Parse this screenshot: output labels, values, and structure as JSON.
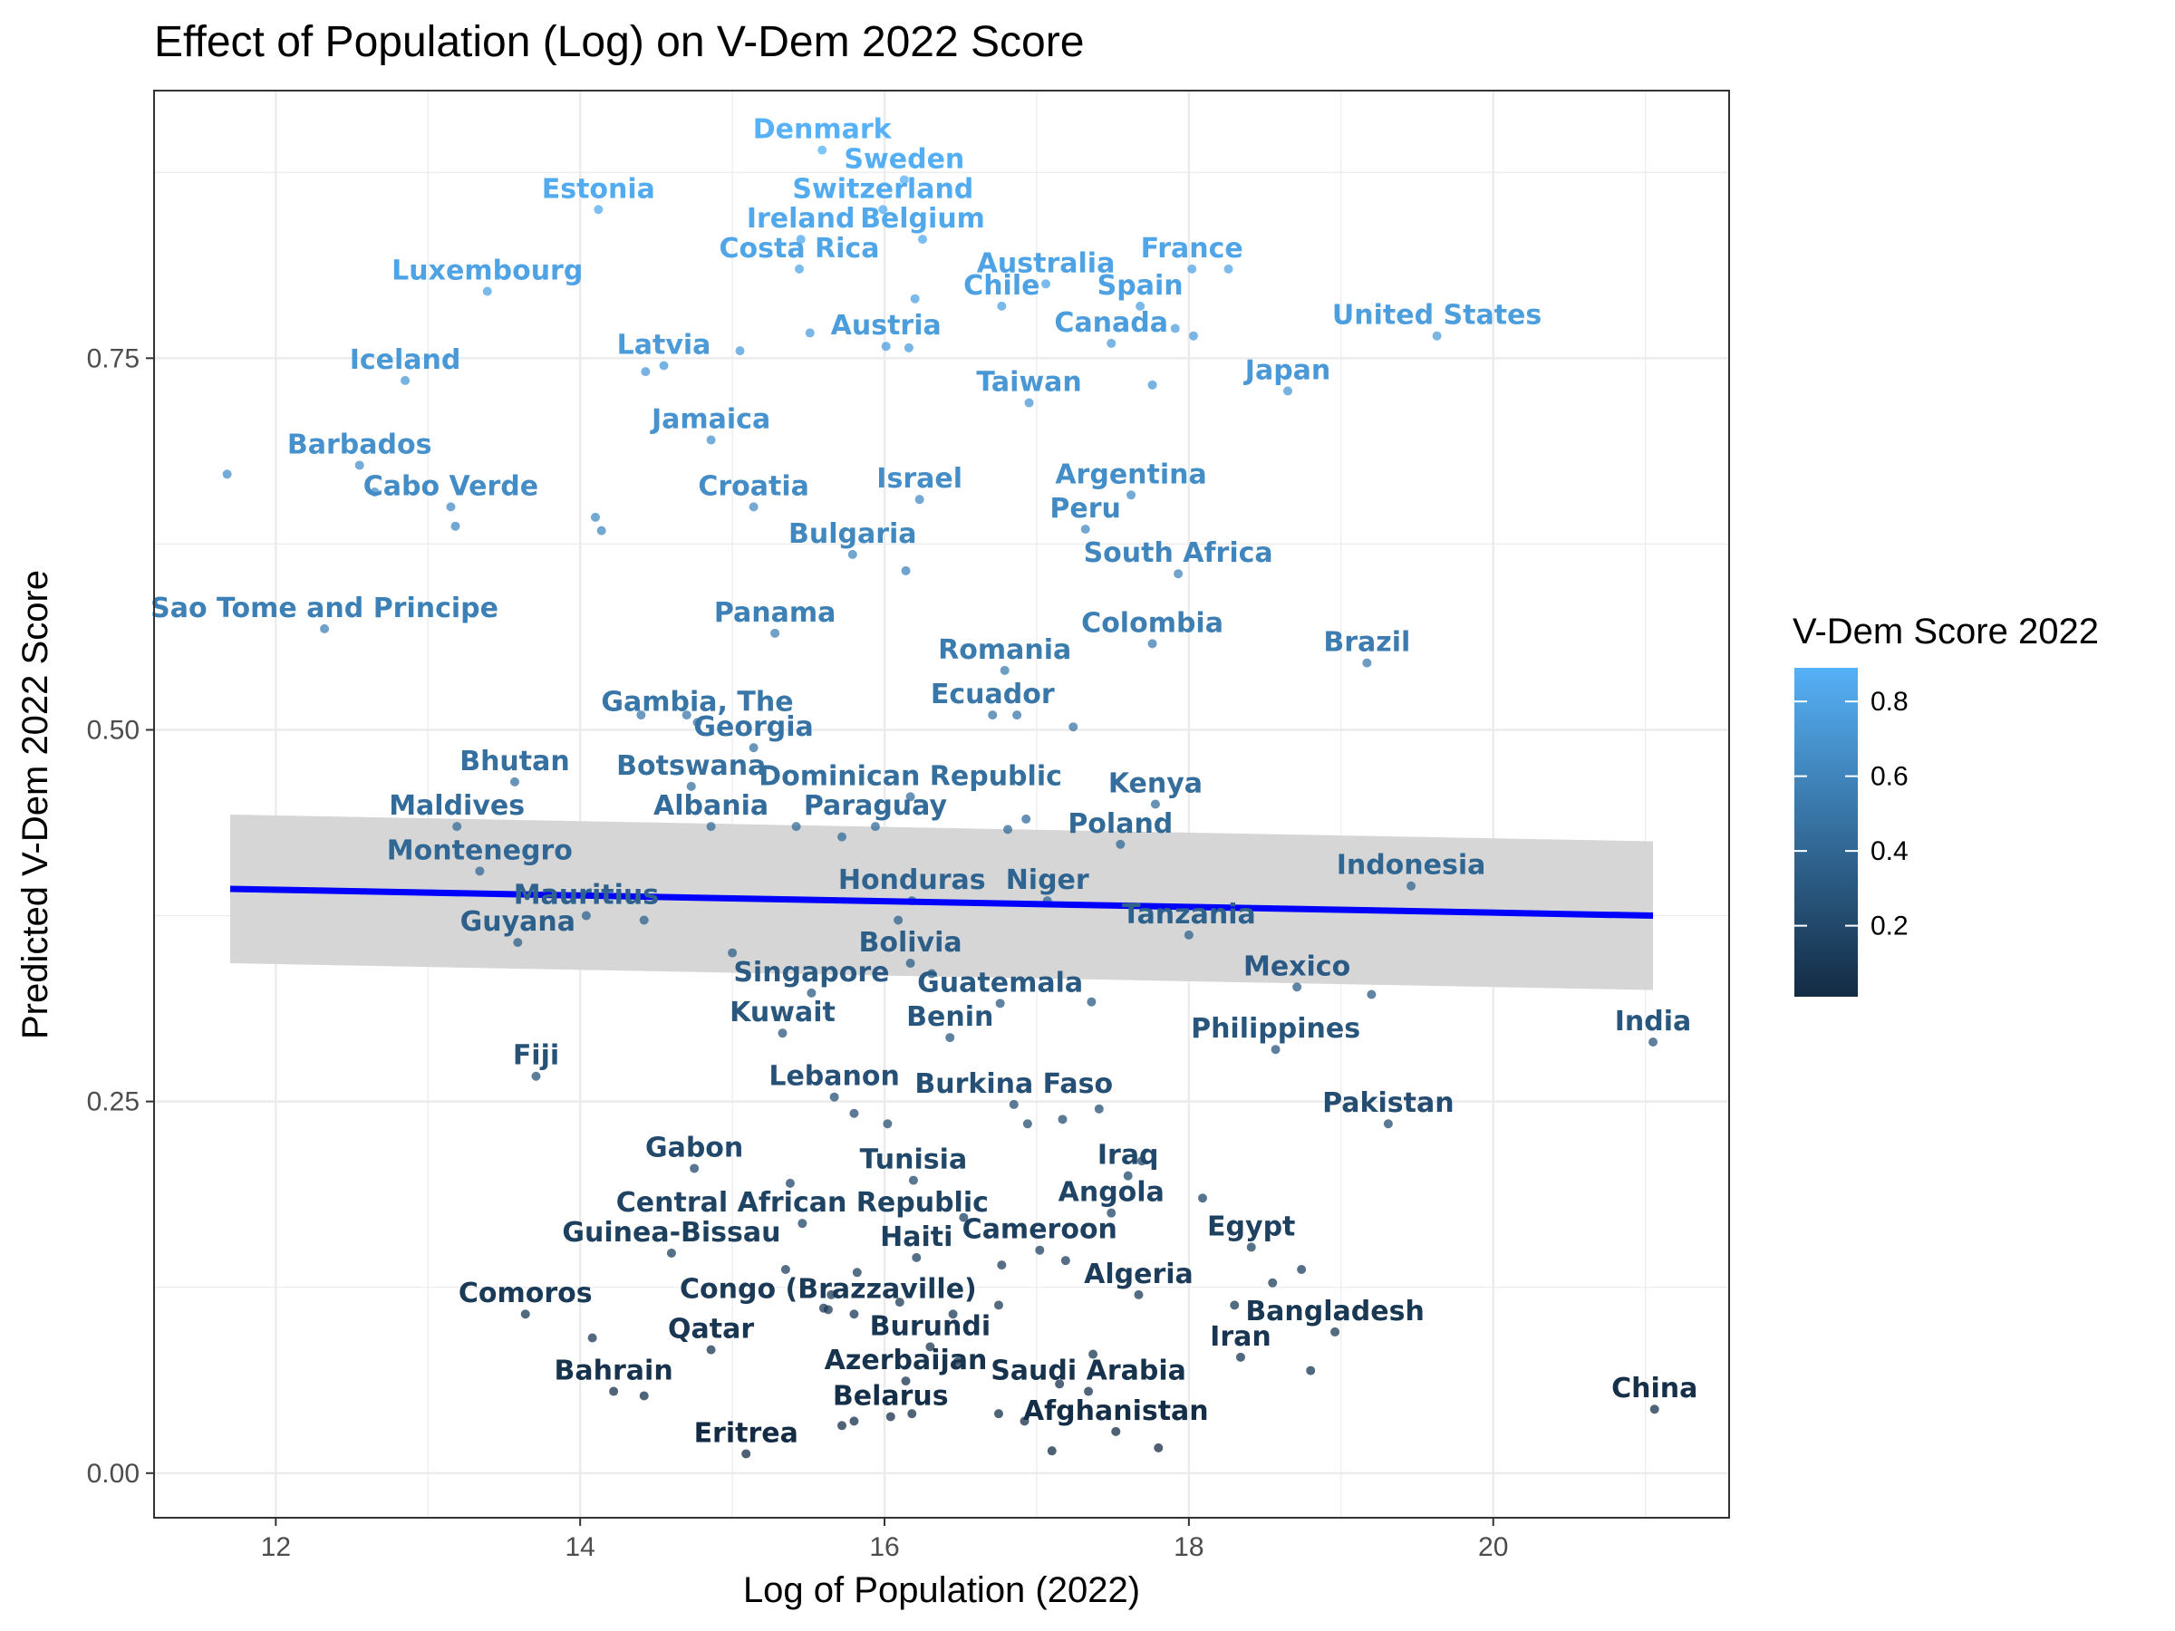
{
  "chart_data": {
    "type": "scatter",
    "title": "Effect of Population (Log) on V-Dem 2022 Score",
    "xlabel": "Log of Population (2022)",
    "ylabel": "Predicted V-Dem 2022 Score",
    "xlim": [
      11.2,
      21.55
    ],
    "ylim": [
      -0.03,
      0.93
    ],
    "x_ticks": [
      12,
      14,
      16,
      18,
      20
    ],
    "y_ticks": [
      0.0,
      0.25,
      0.5,
      0.75
    ],
    "x_tick_labels": [
      "12",
      "14",
      "16",
      "18",
      "20"
    ],
    "y_tick_labels": [
      "0.00",
      "0.25",
      "0.50",
      "0.75"
    ],
    "grid": true,
    "legend": {
      "title": "V-Dem Score 2022",
      "placement": "right",
      "type": "colorbar",
      "min": 0.01,
      "max": 0.89,
      "ticks": [
        0.2,
        0.4,
        0.6,
        0.8
      ],
      "tick_labels": [
        "0.2",
        "0.4",
        "0.6",
        "0.8"
      ],
      "color_low": "#132b43",
      "color_high": "#56b1f7"
    },
    "trend": {
      "method": "linear",
      "line_color": "#0000ff",
      "band_color": "#d4d4d4",
      "x": [
        11.7,
        21.05
      ],
      "y": [
        0.393,
        0.375
      ],
      "lower": [
        0.343,
        0.325
      ],
      "upper": [
        0.443,
        0.425
      ]
    },
    "labeled_points": [
      {
        "label": "Denmark",
        "x": 15.59,
        "y": 0.89
      },
      {
        "label": "Sweden",
        "x": 16.13,
        "y": 0.87
      },
      {
        "label": "Switzerland",
        "x": 15.99,
        "y": 0.85
      },
      {
        "label": "Estonia",
        "x": 14.12,
        "y": 0.85
      },
      {
        "label": "Ireland",
        "x": 15.45,
        "y": 0.83
      },
      {
        "label": "Belgium",
        "x": 16.25,
        "y": 0.83
      },
      {
        "label": "Costa Rica",
        "x": 15.44,
        "y": 0.81
      },
      {
        "label": "Luxembourg",
        "x": 13.39,
        "y": 0.795
      },
      {
        "label": "Australia",
        "x": 17.06,
        "y": 0.8
      },
      {
        "label": "France",
        "x": 18.02,
        "y": 0.81
      },
      {
        "label": "Chile",
        "x": 16.77,
        "y": 0.785
      },
      {
        "label": "Spain",
        "x": 17.68,
        "y": 0.785
      },
      {
        "label": "United States",
        "x": 19.63,
        "y": 0.765
      },
      {
        "label": "Canada",
        "x": 17.49,
        "y": 0.76
      },
      {
        "label": "Austria",
        "x": 16.01,
        "y": 0.758
      },
      {
        "label": "Latvia",
        "x": 14.55,
        "y": 0.745
      },
      {
        "label": "Iceland",
        "x": 12.85,
        "y": 0.735
      },
      {
        "label": "Taiwan",
        "x": 16.95,
        "y": 0.72
      },
      {
        "label": "Japan",
        "x": 18.65,
        "y": 0.728
      },
      {
        "label": "Jamaica",
        "x": 14.86,
        "y": 0.695
      },
      {
        "label": "Barbados",
        "x": 12.55,
        "y": 0.678
      },
      {
        "label": "Cabo Verde",
        "x": 13.15,
        "y": 0.65
      },
      {
        "label": "Croatia",
        "x": 15.14,
        "y": 0.65
      },
      {
        "label": "Israel",
        "x": 16.23,
        "y": 0.655
      },
      {
        "label": "Argentina",
        "x": 17.62,
        "y": 0.658
      },
      {
        "label": "Peru",
        "x": 17.32,
        "y": 0.635
      },
      {
        "label": "Bulgaria",
        "x": 15.79,
        "y": 0.618
      },
      {
        "label": "South Africa",
        "x": 17.93,
        "y": 0.605
      },
      {
        "label": "Sao Tome and Principe",
        "x": 12.32,
        "y": 0.568
      },
      {
        "label": "Panama",
        "x": 15.28,
        "y": 0.565
      },
      {
        "label": "Colombia",
        "x": 17.76,
        "y": 0.558
      },
      {
        "label": "Romania",
        "x": 16.79,
        "y": 0.54
      },
      {
        "label": "Brazil",
        "x": 19.17,
        "y": 0.545
      },
      {
        "label": "Ecuador",
        "x": 16.71,
        "y": 0.51
      },
      {
        "label": "Gambia, The",
        "x": 14.77,
        "y": 0.505
      },
      {
        "label": "Georgia",
        "x": 15.14,
        "y": 0.488
      },
      {
        "label": "Bhutan",
        "x": 13.57,
        "y": 0.465
      },
      {
        "label": "Botswana",
        "x": 14.73,
        "y": 0.462
      },
      {
        "label": "Dominican Republic",
        "x": 16.17,
        "y": 0.455
      },
      {
        "label": "Kenya",
        "x": 17.78,
        "y": 0.45
      },
      {
        "label": "Maldives",
        "x": 13.19,
        "y": 0.435
      },
      {
        "label": "Albania",
        "x": 14.86,
        "y": 0.435
      },
      {
        "label": "Paraguay",
        "x": 15.94,
        "y": 0.435
      },
      {
        "label": "Poland",
        "x": 17.55,
        "y": 0.423
      },
      {
        "label": "Montenegro",
        "x": 13.34,
        "y": 0.405
      },
      {
        "label": "Indonesia",
        "x": 19.46,
        "y": 0.395
      },
      {
        "label": "Honduras",
        "x": 16.18,
        "y": 0.385
      },
      {
        "label": "Niger",
        "x": 17.07,
        "y": 0.385
      },
      {
        "label": "Mauritius",
        "x": 14.04,
        "y": 0.375
      },
      {
        "label": "Guyana",
        "x": 13.59,
        "y": 0.357
      },
      {
        "label": "Tanzania",
        "x": 18.0,
        "y": 0.362
      },
      {
        "label": "Bolivia",
        "x": 16.17,
        "y": 0.343
      },
      {
        "label": "Singapore",
        "x": 15.52,
        "y": 0.323
      },
      {
        "label": "Mexico",
        "x": 18.71,
        "y": 0.327
      },
      {
        "label": "Guatemala",
        "x": 16.76,
        "y": 0.316
      },
      {
        "label": "Kuwait",
        "x": 15.33,
        "y": 0.296
      },
      {
        "label": "Benin",
        "x": 16.43,
        "y": 0.293
      },
      {
        "label": "Philippines",
        "x": 18.57,
        "y": 0.285
      },
      {
        "label": "India",
        "x": 21.05,
        "y": 0.29
      },
      {
        "label": "Fiji",
        "x": 13.71,
        "y": 0.267
      },
      {
        "label": "Lebanon",
        "x": 15.67,
        "y": 0.253
      },
      {
        "label": "Burkina Faso",
        "x": 16.85,
        "y": 0.248
      },
      {
        "label": "Pakistan",
        "x": 19.31,
        "y": 0.235
      },
      {
        "label": "Gabon",
        "x": 14.75,
        "y": 0.205
      },
      {
        "label": "Iraq",
        "x": 17.6,
        "y": 0.2
      },
      {
        "label": "Tunisia",
        "x": 16.19,
        "y": 0.197
      },
      {
        "label": "Central African Republic",
        "x": 15.46,
        "y": 0.168
      },
      {
        "label": "Angola",
        "x": 17.49,
        "y": 0.175
      },
      {
        "label": "Guinea-Bissau",
        "x": 14.6,
        "y": 0.148
      },
      {
        "label": "Haiti",
        "x": 16.21,
        "y": 0.145
      },
      {
        "label": "Cameroon",
        "x": 17.02,
        "y": 0.15
      },
      {
        "label": "Egypt",
        "x": 18.41,
        "y": 0.152
      },
      {
        "label": "Algeria",
        "x": 17.67,
        "y": 0.12
      },
      {
        "label": "Comoros",
        "x": 13.64,
        "y": 0.107
      },
      {
        "label": "Congo (Brazzaville)",
        "x": 15.63,
        "y": 0.11
      },
      {
        "label": "Bangladesh",
        "x": 18.96,
        "y": 0.095
      },
      {
        "label": "Qatar",
        "x": 14.86,
        "y": 0.083
      },
      {
        "label": "Iran",
        "x": 18.34,
        "y": 0.078
      },
      {
        "label": "Burundi",
        "x": 16.3,
        "y": 0.085
      },
      {
        "label": "Azerbaijan",
        "x": 16.14,
        "y": 0.062
      },
      {
        "label": "Bahrain",
        "x": 14.22,
        "y": 0.055
      },
      {
        "label": "Saudi Arabia",
        "x": 17.34,
        "y": 0.055
      },
      {
        "label": "China",
        "x": 21.06,
        "y": 0.043
      },
      {
        "label": "Belarus",
        "x": 16.04,
        "y": 0.038
      },
      {
        "label": "Afghanistan",
        "x": 17.52,
        "y": 0.028
      },
      {
        "label": "Eritrea",
        "x": 15.09,
        "y": 0.013
      }
    ],
    "unlabeled_points": [
      {
        "x": 11.68,
        "y": 0.672
      },
      {
        "x": 12.65,
        "y": 0.66
      },
      {
        "x": 13.18,
        "y": 0.637
      },
      {
        "x": 14.1,
        "y": 0.643
      },
      {
        "x": 14.14,
        "y": 0.634
      },
      {
        "x": 14.43,
        "y": 0.741
      },
      {
        "x": 15.05,
        "y": 0.755
      },
      {
        "x": 15.51,
        "y": 0.767
      },
      {
        "x": 16.2,
        "y": 0.79
      },
      {
        "x": 16.16,
        "y": 0.757
      },
      {
        "x": 16.14,
        "y": 0.607
      },
      {
        "x": 17.76,
        "y": 0.732
      },
      {
        "x": 17.91,
        "y": 0.77
      },
      {
        "x": 18.26,
        "y": 0.81
      },
      {
        "x": 18.03,
        "y": 0.765
      },
      {
        "x": 14.4,
        "y": 0.51
      },
      {
        "x": 14.7,
        "y": 0.51
      },
      {
        "x": 16.87,
        "y": 0.51
      },
      {
        "x": 17.24,
        "y": 0.502
      },
      {
        "x": 15.42,
        "y": 0.435
      },
      {
        "x": 16.81,
        "y": 0.433
      },
      {
        "x": 16.93,
        "y": 0.44
      },
      {
        "x": 15.72,
        "y": 0.428
      },
      {
        "x": 14.42,
        "y": 0.372
      },
      {
        "x": 16.09,
        "y": 0.372
      },
      {
        "x": 15.0,
        "y": 0.35
      },
      {
        "x": 16.31,
        "y": 0.336
      },
      {
        "x": 17.36,
        "y": 0.317
      },
      {
        "x": 19.2,
        "y": 0.322
      },
      {
        "x": 15.8,
        "y": 0.242
      },
      {
        "x": 16.02,
        "y": 0.235
      },
      {
        "x": 16.94,
        "y": 0.235
      },
      {
        "x": 17.17,
        "y": 0.238
      },
      {
        "x": 17.41,
        "y": 0.245
      },
      {
        "x": 15.38,
        "y": 0.195
      },
      {
        "x": 17.69,
        "y": 0.21
      },
      {
        "x": 18.09,
        "y": 0.185
      },
      {
        "x": 16.52,
        "y": 0.172
      },
      {
        "x": 15.35,
        "y": 0.137
      },
      {
        "x": 15.82,
        "y": 0.135
      },
      {
        "x": 16.77,
        "y": 0.14
      },
      {
        "x": 17.19,
        "y": 0.143
      },
      {
        "x": 18.74,
        "y": 0.137
      },
      {
        "x": 18.55,
        "y": 0.128
      },
      {
        "x": 14.08,
        "y": 0.091
      },
      {
        "x": 15.65,
        "y": 0.12
      },
      {
        "x": 15.6,
        "y": 0.111
      },
      {
        "x": 15.8,
        "y": 0.107
      },
      {
        "x": 16.1,
        "y": 0.115
      },
      {
        "x": 16.45,
        "y": 0.107
      },
      {
        "x": 16.75,
        "y": 0.113
      },
      {
        "x": 18.3,
        "y": 0.113
      },
      {
        "x": 18.8,
        "y": 0.069
      },
      {
        "x": 14.42,
        "y": 0.052
      },
      {
        "x": 15.8,
        "y": 0.035
      },
      {
        "x": 15.72,
        "y": 0.032
      },
      {
        "x": 16.18,
        "y": 0.04
      },
      {
        "x": 16.48,
        "y": 0.075
      },
      {
        "x": 16.75,
        "y": 0.04
      },
      {
        "x": 17.37,
        "y": 0.08
      },
      {
        "x": 17.15,
        "y": 0.06
      },
      {
        "x": 16.92,
        "y": 0.035
      },
      {
        "x": 17.1,
        "y": 0.015
      },
      {
        "x": 17.8,
        "y": 0.017
      }
    ]
  }
}
